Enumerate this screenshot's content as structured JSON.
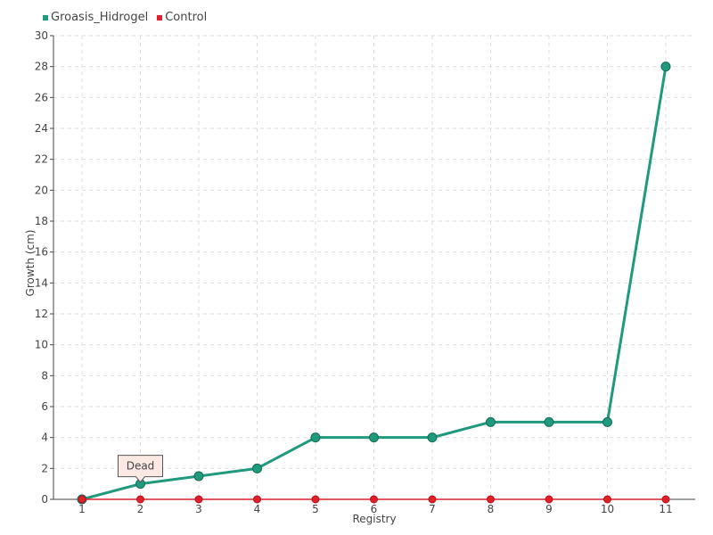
{
  "chart_data": {
    "type": "line",
    "categories": [
      "1",
      "2",
      "3",
      "4",
      "5",
      "6",
      "7",
      "8",
      "9",
      "10",
      "11"
    ],
    "series": [
      {
        "name": "Groasis_Hidrogel",
        "color": "#1f9a7c",
        "values": [
          0,
          1,
          1.5,
          2,
          4,
          4,
          4,
          5,
          5,
          5,
          28
        ]
      },
      {
        "name": "Control",
        "color": "#e0202a",
        "values": [
          0,
          0,
          0,
          0,
          0,
          0,
          0,
          0,
          0,
          0,
          0
        ]
      }
    ],
    "xlabel": "Registry",
    "ylabel": "Growth (cm)",
    "ylim": [
      0,
      30
    ],
    "yticks": [
      0,
      2,
      4,
      6,
      8,
      10,
      12,
      14,
      16,
      18,
      20,
      22,
      24,
      26,
      28,
      30
    ],
    "grid": true,
    "legend": "top-left",
    "tooltip": {
      "category": "2",
      "text": "Dead"
    }
  }
}
